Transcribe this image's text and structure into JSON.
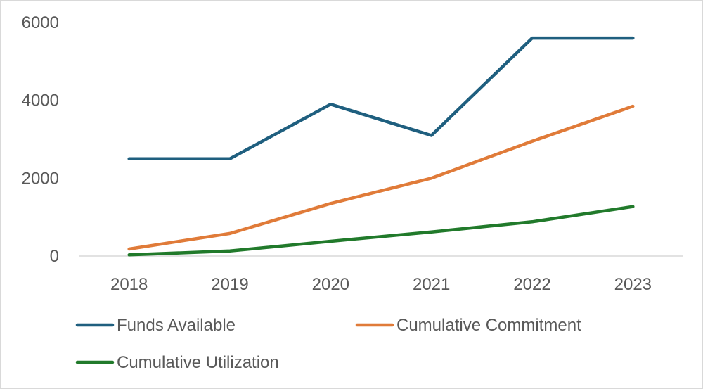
{
  "chart_data": {
    "type": "line",
    "title": "",
    "xlabel": "",
    "ylabel": "",
    "categories": [
      "2018",
      "2019",
      "2020",
      "2021",
      "2022",
      "2023"
    ],
    "ylim": [
      0,
      6000
    ],
    "yticks": [
      "0",
      "2000",
      "4000",
      "6000"
    ],
    "grid": false,
    "legend_position": "bottom",
    "series": [
      {
        "name": "Funds Available",
        "color": "#1f5f7f",
        "values": [
          2500,
          2500,
          3900,
          3100,
          5600,
          5600
        ]
      },
      {
        "name": "Cumulative Commitment",
        "color": "#e07b39",
        "values": [
          180,
          580,
          1350,
          2000,
          2950,
          3850
        ]
      },
      {
        "name": "Cumulative Utilization",
        "color": "#217a2b",
        "values": [
          30,
          130,
          380,
          620,
          880,
          1270
        ]
      }
    ]
  }
}
